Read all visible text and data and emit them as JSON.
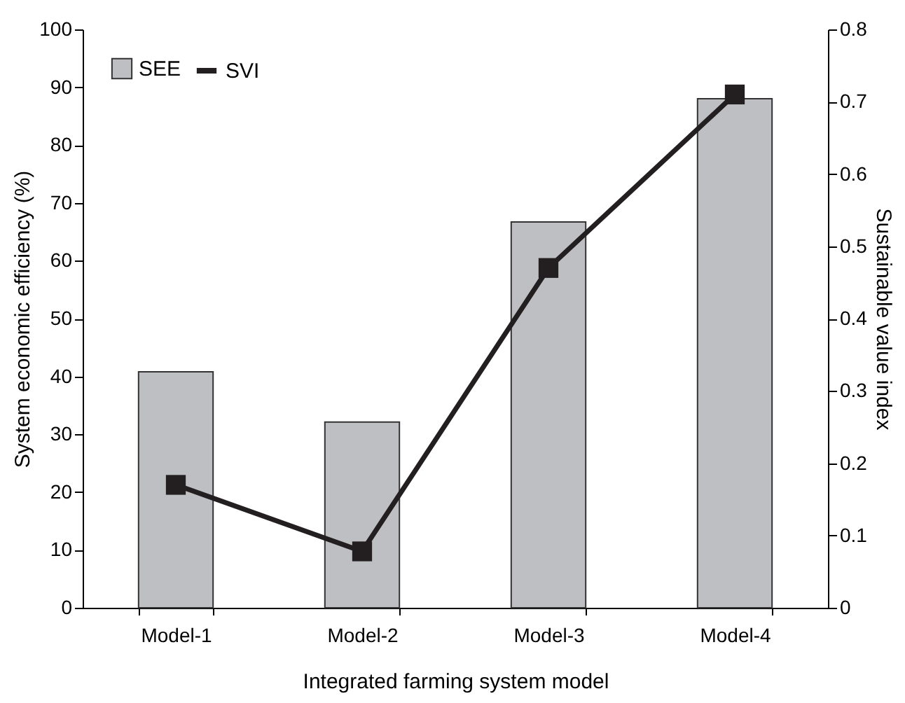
{
  "chart_data": {
    "type": "bar",
    "xlabel": "Integrated farming system model",
    "ylabel": "System economic efficiency (%)",
    "y2label": "Sustainable value index",
    "categories": [
      "Model-1",
      "Model-2",
      "Model-3",
      "Model-4"
    ],
    "series": [
      {
        "name": "SEE",
        "color": "#bebfc3",
        "values": [
          40.8,
          32.1,
          66.7,
          88.0
        ]
      },
      {
        "name": "SVI",
        "type": "line",
        "axis": "y2",
        "color": "#231f20",
        "marker": "square",
        "values": [
          0.17,
          0.078,
          0.47,
          0.71
        ]
      }
    ],
    "ylim": [
      0,
      100
    ],
    "yticks": [
      0,
      10,
      20,
      30,
      40,
      50,
      60,
      70,
      80,
      90,
      100
    ],
    "y2lim": [
      0,
      0.8
    ],
    "y2ticks": [
      0,
      0.1,
      0.2,
      0.3,
      0.4,
      0.5,
      0.6,
      0.7,
      0.8
    ],
    "grid": false,
    "legend": "top left"
  }
}
